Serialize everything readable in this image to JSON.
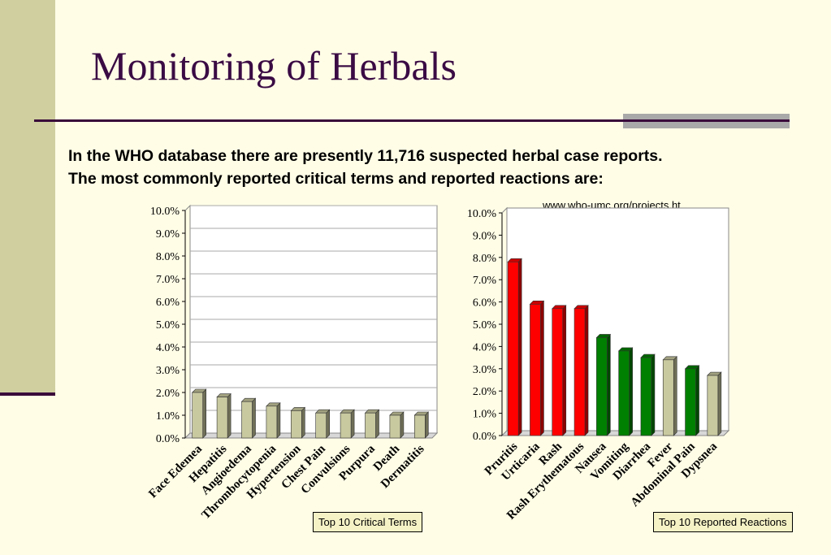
{
  "slide": {
    "title": "Monitoring of Herbals",
    "intro_line1": "In the WHO database there are presently 11,716 suspected herbal case reports.",
    "intro_line2": "The most commonly reported critical terms and reported reactions are:",
    "source_link": "www.who-umc.org/projects.ht",
    "colors": {
      "title": "#3a0b44",
      "background": "#fffde6",
      "band": "#cfcfa0",
      "rule": "#3a0b3a"
    }
  },
  "chart_data": [
    {
      "type": "bar",
      "caption": "Top 10 Critical Terms",
      "categories": [
        "Face Edemea",
        "Hepatitis",
        "Angioedema",
        "Thrombocytopenia",
        "Hypertension",
        "Chest Pain",
        "Convulsions",
        "Purpura",
        "Death",
        "Dermatitis"
      ],
      "values": [
        2.0,
        1.8,
        1.6,
        1.4,
        1.2,
        1.1,
        1.1,
        1.1,
        1.0,
        1.0
      ],
      "bar_colors": [
        "#c9c9a0",
        "#c9c9a0",
        "#c9c9a0",
        "#c9c9a0",
        "#c9c9a0",
        "#c9c9a0",
        "#c9c9a0",
        "#c9c9a0",
        "#c9c9a0",
        "#c9c9a0"
      ],
      "yticks": [
        "0.0%",
        "1.0%",
        "2.0%",
        "3.0%",
        "4.0%",
        "5.0%",
        "6.0%",
        "7.0%",
        "8.0%",
        "9.0%",
        "10.0%"
      ],
      "ylim": [
        0,
        10
      ],
      "grid": true
    },
    {
      "type": "bar",
      "caption": "Top 10 Reported Reactions",
      "categories": [
        "Pruritis",
        "Urticaria",
        "Rash",
        "Rash Erythematous",
        "Nausea",
        "Vomiting",
        "Diarrhea",
        "Fever",
        "Abdominal Pain",
        "Dypsnea"
      ],
      "values": [
        7.8,
        5.9,
        5.7,
        5.7,
        4.4,
        3.8,
        3.5,
        3.4,
        3.0,
        2.7
      ],
      "bar_colors": [
        "#ff0000",
        "#ff0000",
        "#ff0000",
        "#ff0000",
        "#008000",
        "#008000",
        "#008000",
        "#c9c9a0",
        "#008000",
        "#c9c9a0"
      ],
      "yticks": [
        "0.0%",
        "1.0%",
        "2.0%",
        "3.0%",
        "4.0%",
        "5.0%",
        "6.0%",
        "7.0%",
        "8.0%",
        "9.0%",
        "10.0%"
      ],
      "ylim": [
        0,
        10
      ],
      "grid": false
    }
  ]
}
